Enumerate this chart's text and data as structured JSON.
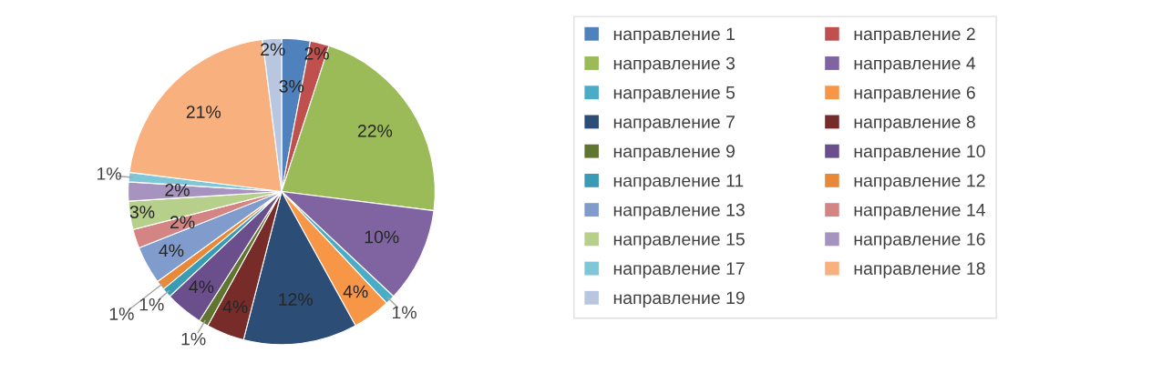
{
  "chart_data": {
    "type": "pie",
    "categories": [
      "направление 1",
      "направление 2",
      "направление 3",
      "направление 4",
      "направление 5",
      "направление 6",
      "направление 7",
      "направление 8",
      "направление 9",
      "направление 10",
      "направление 11",
      "направление 12",
      "направление 13",
      "направление 14",
      "направление 15",
      "направление 16",
      "направление 17",
      "направление 18",
      "направление 19"
    ],
    "values": [
      3,
      2,
      22,
      10,
      1,
      4,
      12,
      4,
      1,
      4,
      1,
      1,
      4,
      2,
      3,
      2,
      1,
      21,
      2
    ],
    "value_labels": [
      "3%",
      "2%",
      "22%",
      "10%",
      "1%",
      "4%",
      "12%",
      "4%",
      "1%",
      "4%",
      "1%",
      "1%",
      "4%",
      "2%",
      "3%",
      "2%",
      "1%",
      "21%",
      "2%"
    ],
    "colors": [
      "#4f81bd",
      "#c0504d",
      "#9bbb59",
      "#8064a2",
      "#4bacc6",
      "#f79646",
      "#2c4d75",
      "#772c2a",
      "#5f7530",
      "#6a4f8c",
      "#3a9bb5",
      "#e8893a",
      "#7f9ccd",
      "#d48583",
      "#b6cf8a",
      "#a693bf",
      "#7fc6d9",
      "#f9b07f",
      "#b9c6e0"
    ],
    "legend": "right"
  }
}
